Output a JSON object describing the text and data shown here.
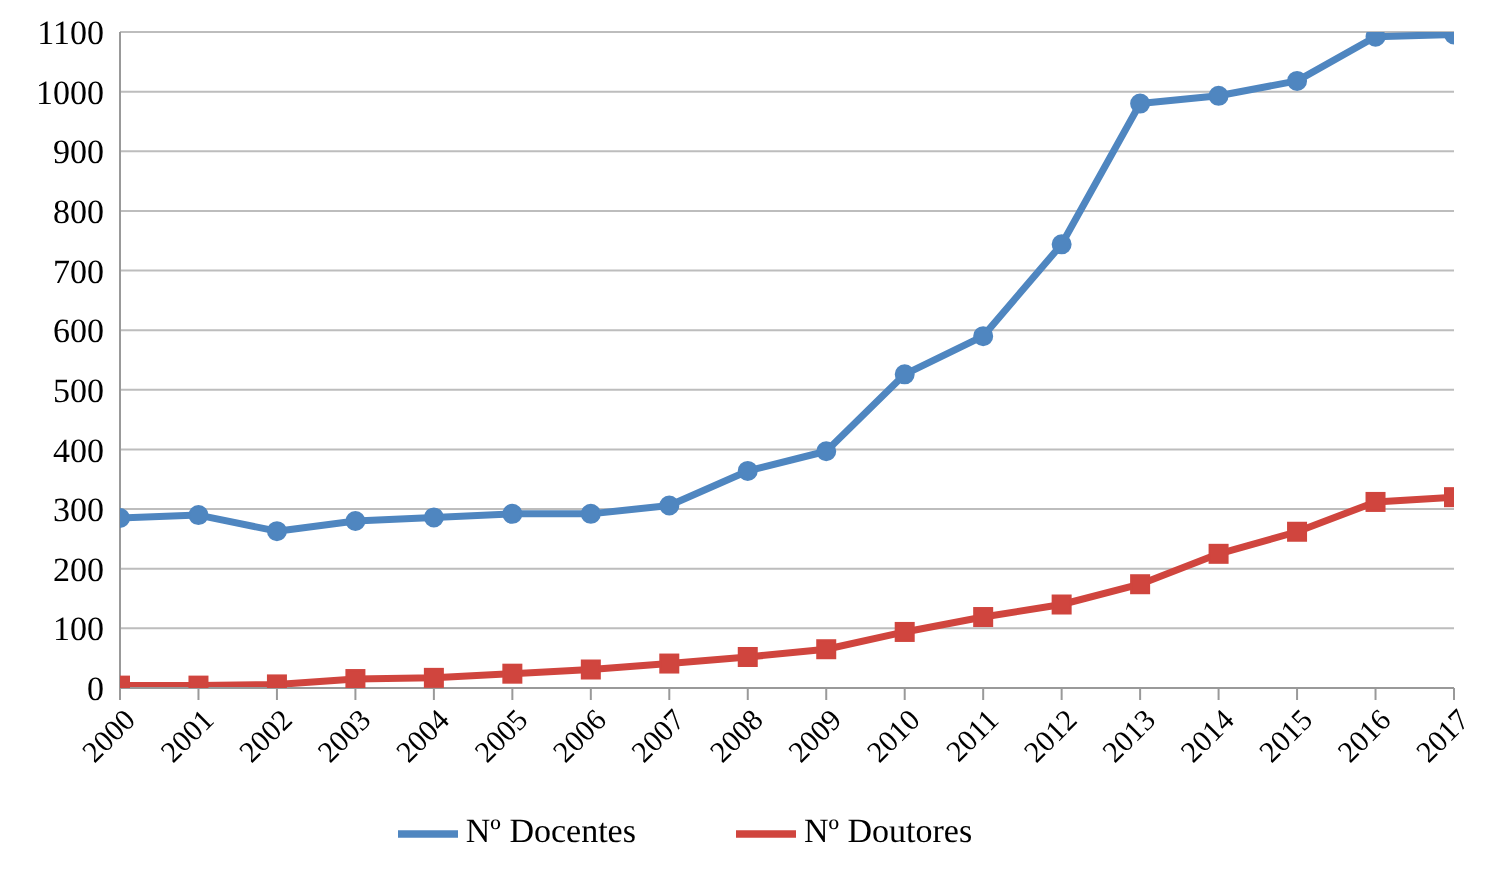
{
  "chart_data": {
    "type": "line",
    "categories": [
      "2000",
      "2001",
      "2002",
      "2003",
      "2004",
      "2005",
      "2006",
      "2007",
      "2008",
      "2009",
      "2010",
      "2011",
      "2012",
      "2013",
      "2014",
      "2015",
      "2016",
      "2017"
    ],
    "series": [
      {
        "name": "Nº Docentes",
        "color": "#4f86c0",
        "marker": "circle",
        "values": [
          285,
          290,
          263,
          280,
          286,
          292,
          292,
          306,
          364,
          397,
          526,
          590,
          744,
          980,
          993,
          1018,
          1092,
          1096
        ]
      },
      {
        "name": "Nº Doutores",
        "color": "#d0453e",
        "marker": "square",
        "values": [
          4,
          4,
          6,
          15,
          17,
          24,
          31,
          41,
          52,
          65,
          94,
          119,
          140,
          174,
          225,
          262,
          312,
          320
        ]
      }
    ],
    "ylim": [
      0,
      1100
    ],
    "yticks": [
      0,
      100,
      200,
      300,
      400,
      500,
      600,
      700,
      800,
      900,
      1000,
      1100
    ],
    "grid": "y",
    "legend": "bottom",
    "line_style": "solid"
  }
}
